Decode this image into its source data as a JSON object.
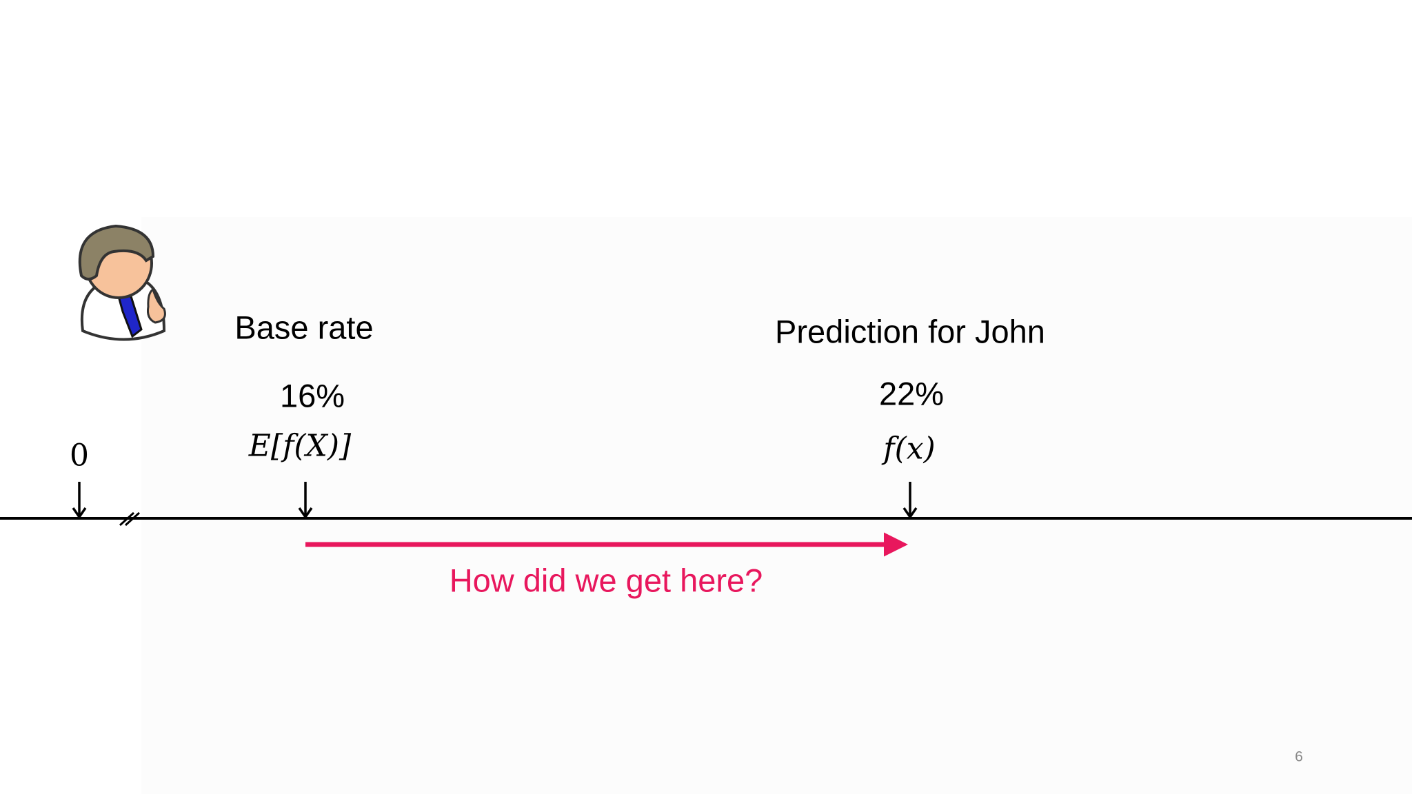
{
  "base": {
    "title": "Base rate",
    "value": "16%",
    "formula": "E[f(X)]"
  },
  "prediction": {
    "title": "Prediction for John",
    "value": "22%",
    "formula": "f(x)"
  },
  "axis": {
    "origin_label": "0"
  },
  "arrow_label": "How did we get here?",
  "page_number": "6"
}
